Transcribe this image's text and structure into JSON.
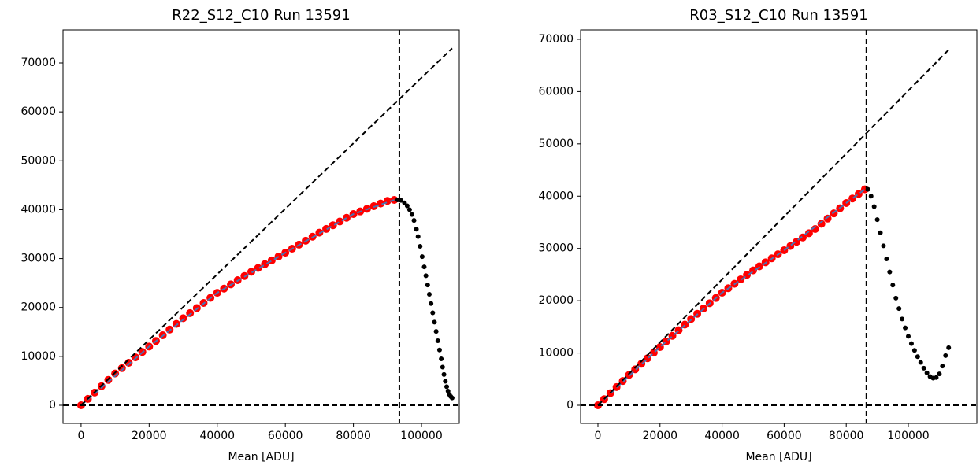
{
  "chart_data": [
    {
      "type": "scatter",
      "title": "R22_S12_C10 Run 13591",
      "xlabel": "Mean [ADU]",
      "xlim": [
        -5300,
        111100
      ],
      "ylim": [
        -3700,
        76760
      ],
      "xticks": [
        0,
        20000,
        40000,
        60000,
        80000,
        100000
      ],
      "yticks": [
        0,
        10000,
        20000,
        30000,
        40000,
        50000,
        60000,
        70000
      ],
      "vlines": [
        93500
      ],
      "hlines": [
        0
      ],
      "series": [
        {
          "color": "red",
          "style": "dots",
          "x": [
            0,
            2000,
            4000,
            6000,
            8000,
            10000,
            12000,
            14000,
            16000,
            18000,
            20000,
            22000,
            24000,
            26000,
            28000,
            30000,
            32000,
            34000,
            36000,
            38000,
            40000,
            42000,
            44000,
            46000,
            48000,
            50000,
            52000,
            54000,
            56000,
            58000,
            60000,
            62000,
            64000,
            66000,
            68000,
            70000,
            72000,
            74000,
            76000,
            78000,
            80000,
            82000,
            84000,
            86000,
            88000,
            90000,
            92000
          ],
          "values": [
            0,
            1300,
            2600,
            3900,
            5200,
            6500,
            7600,
            8700,
            9800,
            10900,
            12000,
            13160,
            14320,
            15480,
            16640,
            17800,
            18840,
            19880,
            20920,
            21960,
            23000,
            23860,
            24720,
            25580,
            26440,
            27300,
            28080,
            28860,
            29640,
            30420,
            31200,
            32020,
            32840,
            33660,
            34480,
            35300,
            36060,
            36820,
            37580,
            38340,
            39100,
            39640,
            40180,
            40720,
            41260,
            41800,
            42000
          ]
        },
        {
          "color": "black",
          "style": "dots",
          "x": [
            93000,
            94000,
            95000,
            95800,
            96500,
            97200,
            97800,
            98500,
            99000,
            99600,
            100200,
            100800,
            101300,
            101800,
            102300,
            102800,
            103300,
            103800,
            104300,
            104800,
            105300,
            105800,
            106200,
            106600,
            107000,
            107400,
            107800,
            108200,
            108600,
            109000
          ],
          "values": [
            42000,
            41900,
            41400,
            40800,
            40000,
            39000,
            37800,
            36000,
            34500,
            32500,
            30400,
            28300,
            26500,
            24600,
            22700,
            20800,
            18900,
            17000,
            15100,
            13200,
            11300,
            9500,
            7800,
            6300,
            4900,
            3800,
            2900,
            2200,
            1800,
            1500
          ]
        },
        {
          "color": "#4c72b0",
          "style": "dashed",
          "x": [
            0,
            20000,
            40000,
            60000,
            80000,
            92000
          ],
          "values": [
            0,
            12000,
            23000,
            31200,
            39100,
            42000
          ]
        },
        {
          "color": "black",
          "style": "dashed",
          "x": [
            0,
            109000
          ],
          "values": [
            0,
            73000
          ]
        }
      ]
    },
    {
      "type": "scatter",
      "title": "R03_S12_C10 Run 13591",
      "xlabel": "Mean [ADU]",
      "xlim": [
        -5580,
        122080
      ],
      "ylim": [
        -3460,
        71800
      ],
      "xticks": [
        0,
        20000,
        40000,
        60000,
        80000,
        100000
      ],
      "yticks": [
        0,
        10000,
        20000,
        30000,
        40000,
        50000,
        60000,
        70000
      ],
      "vlines": [
        86500
      ],
      "hlines": [
        0
      ],
      "series": [
        {
          "color": "red",
          "style": "dots",
          "x": [
            0,
            2000,
            4000,
            6000,
            8000,
            10000,
            12000,
            14000,
            16000,
            18000,
            20000,
            22000,
            24000,
            26000,
            28000,
            30000,
            32000,
            34000,
            36000,
            38000,
            40000,
            42000,
            44000,
            46000,
            48000,
            50000,
            52000,
            54000,
            56000,
            58000,
            60000,
            62000,
            64000,
            66000,
            68000,
            70000,
            72000,
            74000,
            76000,
            78000,
            80000,
            82000,
            84000,
            86000
          ],
          "values": [
            0,
            1160,
            2320,
            3480,
            4640,
            5800,
            6868,
            7936,
            9004,
            10072,
            11140,
            12212,
            13284,
            14356,
            15428,
            16500,
            17506,
            18512,
            19518,
            20524,
            21530,
            22384,
            23238,
            24092,
            24946,
            25800,
            26570,
            27340,
            28110,
            28880,
            29650,
            30464,
            31278,
            32092,
            32906,
            33720,
            34714,
            35708,
            36702,
            37696,
            38690,
            39560,
            40430,
            41300
          ]
        },
        {
          "color": "black",
          "style": "dots",
          "x": [
            87000,
            88000,
            89000,
            90000,
            91000,
            92000,
            93000,
            94000,
            95000,
            96000,
            97000,
            98000,
            99000,
            100000,
            101000,
            102000,
            103000,
            104000,
            105000,
            106000,
            107000,
            108000,
            109000,
            110000,
            111000,
            112000,
            113000
          ],
          "values": [
            41300,
            40000,
            38000,
            35500,
            33000,
            30500,
            28000,
            25500,
            23000,
            20500,
            18500,
            16500,
            14800,
            13200,
            11800,
            10500,
            9300,
            8200,
            7100,
            6200,
            5500,
            5200,
            5300,
            6000,
            7500,
            9500,
            11000
          ]
        },
        {
          "color": "#4c72b0",
          "style": "dashed",
          "x": [
            0,
            20000,
            40000,
            60000,
            80000,
            86000
          ],
          "values": [
            0,
            11140,
            21530,
            29650,
            38690,
            41300
          ]
        },
        {
          "color": "black",
          "style": "dashed",
          "x": [
            0,
            113000
          ],
          "values": [
            0,
            68000
          ]
        }
      ]
    }
  ]
}
